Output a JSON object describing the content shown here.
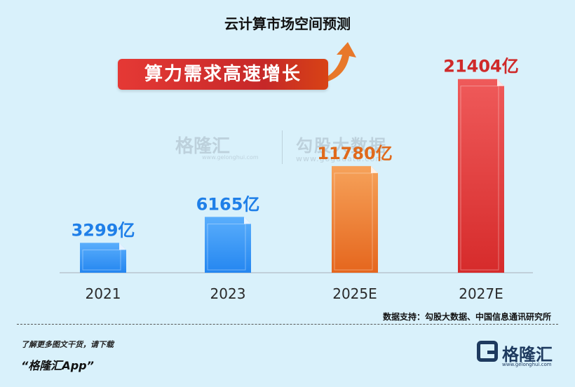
{
  "title": "云计算市场空间预测",
  "banner": "算力需求高速增长",
  "watermark": {
    "left": "格隆汇",
    "left_sub": "www.gelonghui.com",
    "right": "勾股大数据",
    "right_sub": "www.gogudata.com"
  },
  "source": "数据支持：勾股大数据、中国信息通讯研究所",
  "promo": {
    "line1": "了解更多图文干货，请下载",
    "line2": "“格隆汇App”"
  },
  "logo": {
    "text": "格隆汇",
    "sub": "www.gelonghui.com"
  },
  "colors": {
    "blue_top": "#5aaefc",
    "blue_bottom": "#2486f0",
    "orange_top": "#f6a25a",
    "orange_bottom": "#e5661d",
    "red_top": "#ef5a5a",
    "red_bottom": "#d62b2b",
    "label_blue": "#1f7fe8",
    "label_orange": "#e06a1c",
    "label_red": "#cf2a2a"
  },
  "chart_data": {
    "type": "bar",
    "title": "云计算市场空间预测",
    "categories": [
      "2021",
      "2023",
      "2025E",
      "2027E"
    ],
    "values": [
      3299,
      6165,
      11780,
      21404
    ],
    "data_labels": [
      "3299亿",
      "6165亿",
      "11780亿",
      "21404亿"
    ],
    "unit": "亿",
    "bar_colors": [
      "blue",
      "blue",
      "orange",
      "red"
    ],
    "ylim": [
      0,
      22000
    ],
    "grid": false,
    "legend": "none"
  }
}
